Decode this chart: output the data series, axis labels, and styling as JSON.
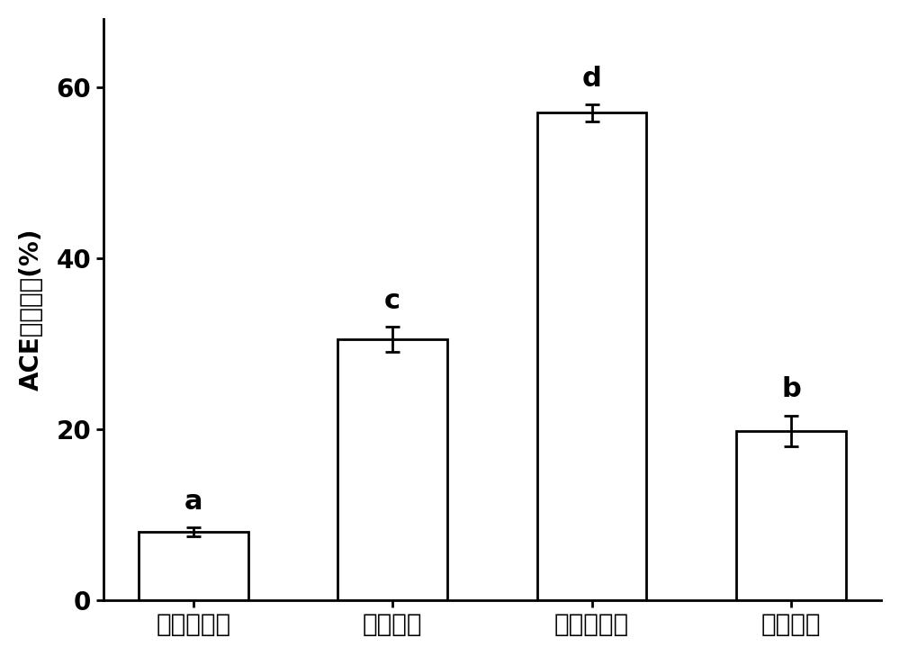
{
  "categories": [
    "木瓜蛋白酶",
    "胰蛋白酶",
    "碱性蛋白酶",
    "胃蛋白酶"
  ],
  "values": [
    8.0,
    30.5,
    57.0,
    19.8
  ],
  "errors": [
    0.5,
    1.5,
    1.0,
    1.8
  ],
  "annotation_labels": [
    "a",
    "c",
    "d",
    "b"
  ],
  "ylabel": "ACE抑制活性(%)",
  "ylim": [
    0,
    68
  ],
  "yticks": [
    0,
    20,
    40,
    60
  ],
  "bar_color": "#ffffff",
  "bar_edgecolor": "#000000",
  "bar_linewidth": 2.0,
  "bar_width": 0.55,
  "figsize": [
    10.0,
    7.29
  ],
  "dpi": 100,
  "background_color": "#ffffff",
  "tick_fontsize": 20,
  "ylabel_fontsize": 20,
  "annotation_fontsize": 22,
  "xtick_fontsize": 20
}
